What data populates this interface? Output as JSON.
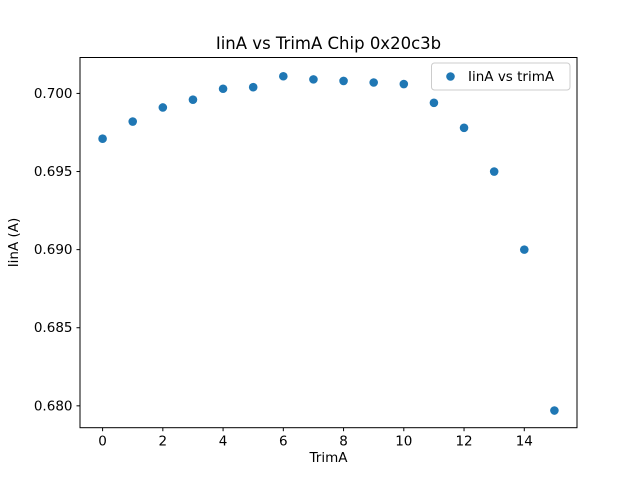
{
  "figure": {
    "background": "#ffffff"
  },
  "chart_data": {
    "type": "scatter",
    "title": "IinA vs TrimA Chip 0x20c3b",
    "xlabel": "TrimA",
    "ylabel": "IinA (A)",
    "series": [
      {
        "name": "IinA vs trimA",
        "x": [
          0,
          1,
          2,
          3,
          4,
          5,
          6,
          7,
          8,
          9,
          10,
          11,
          12,
          13,
          14,
          15
        ],
        "y": [
          0.6971,
          0.6982,
          0.6991,
          0.6996,
          0.7003,
          0.7004,
          0.7011,
          0.7009,
          0.7008,
          0.7007,
          0.7006,
          0.6994,
          0.6978,
          0.695,
          0.69,
          0.6797
        ]
      }
    ],
    "marker_color": "#1f77b4",
    "spine_color": "#000000",
    "legend": {
      "label": "IinA vs trimA",
      "position": "upper right",
      "border_color": "#cccccc",
      "background": "#ffffff"
    },
    "xlim": [
      -0.75,
      15.75
    ],
    "ylim": [
      0.6786,
      0.7023
    ],
    "xticks": [
      0,
      2,
      4,
      6,
      8,
      10,
      12,
      14
    ],
    "xtick_labels": [
      "0",
      "2",
      "4",
      "6",
      "8",
      "10",
      "12",
      "14"
    ],
    "yticks": [
      0.68,
      0.685,
      0.69,
      0.695,
      0.7
    ],
    "ytick_labels": [
      "0.680",
      "0.685",
      "0.690",
      "0.695",
      "0.700"
    ],
    "grid": false
  }
}
